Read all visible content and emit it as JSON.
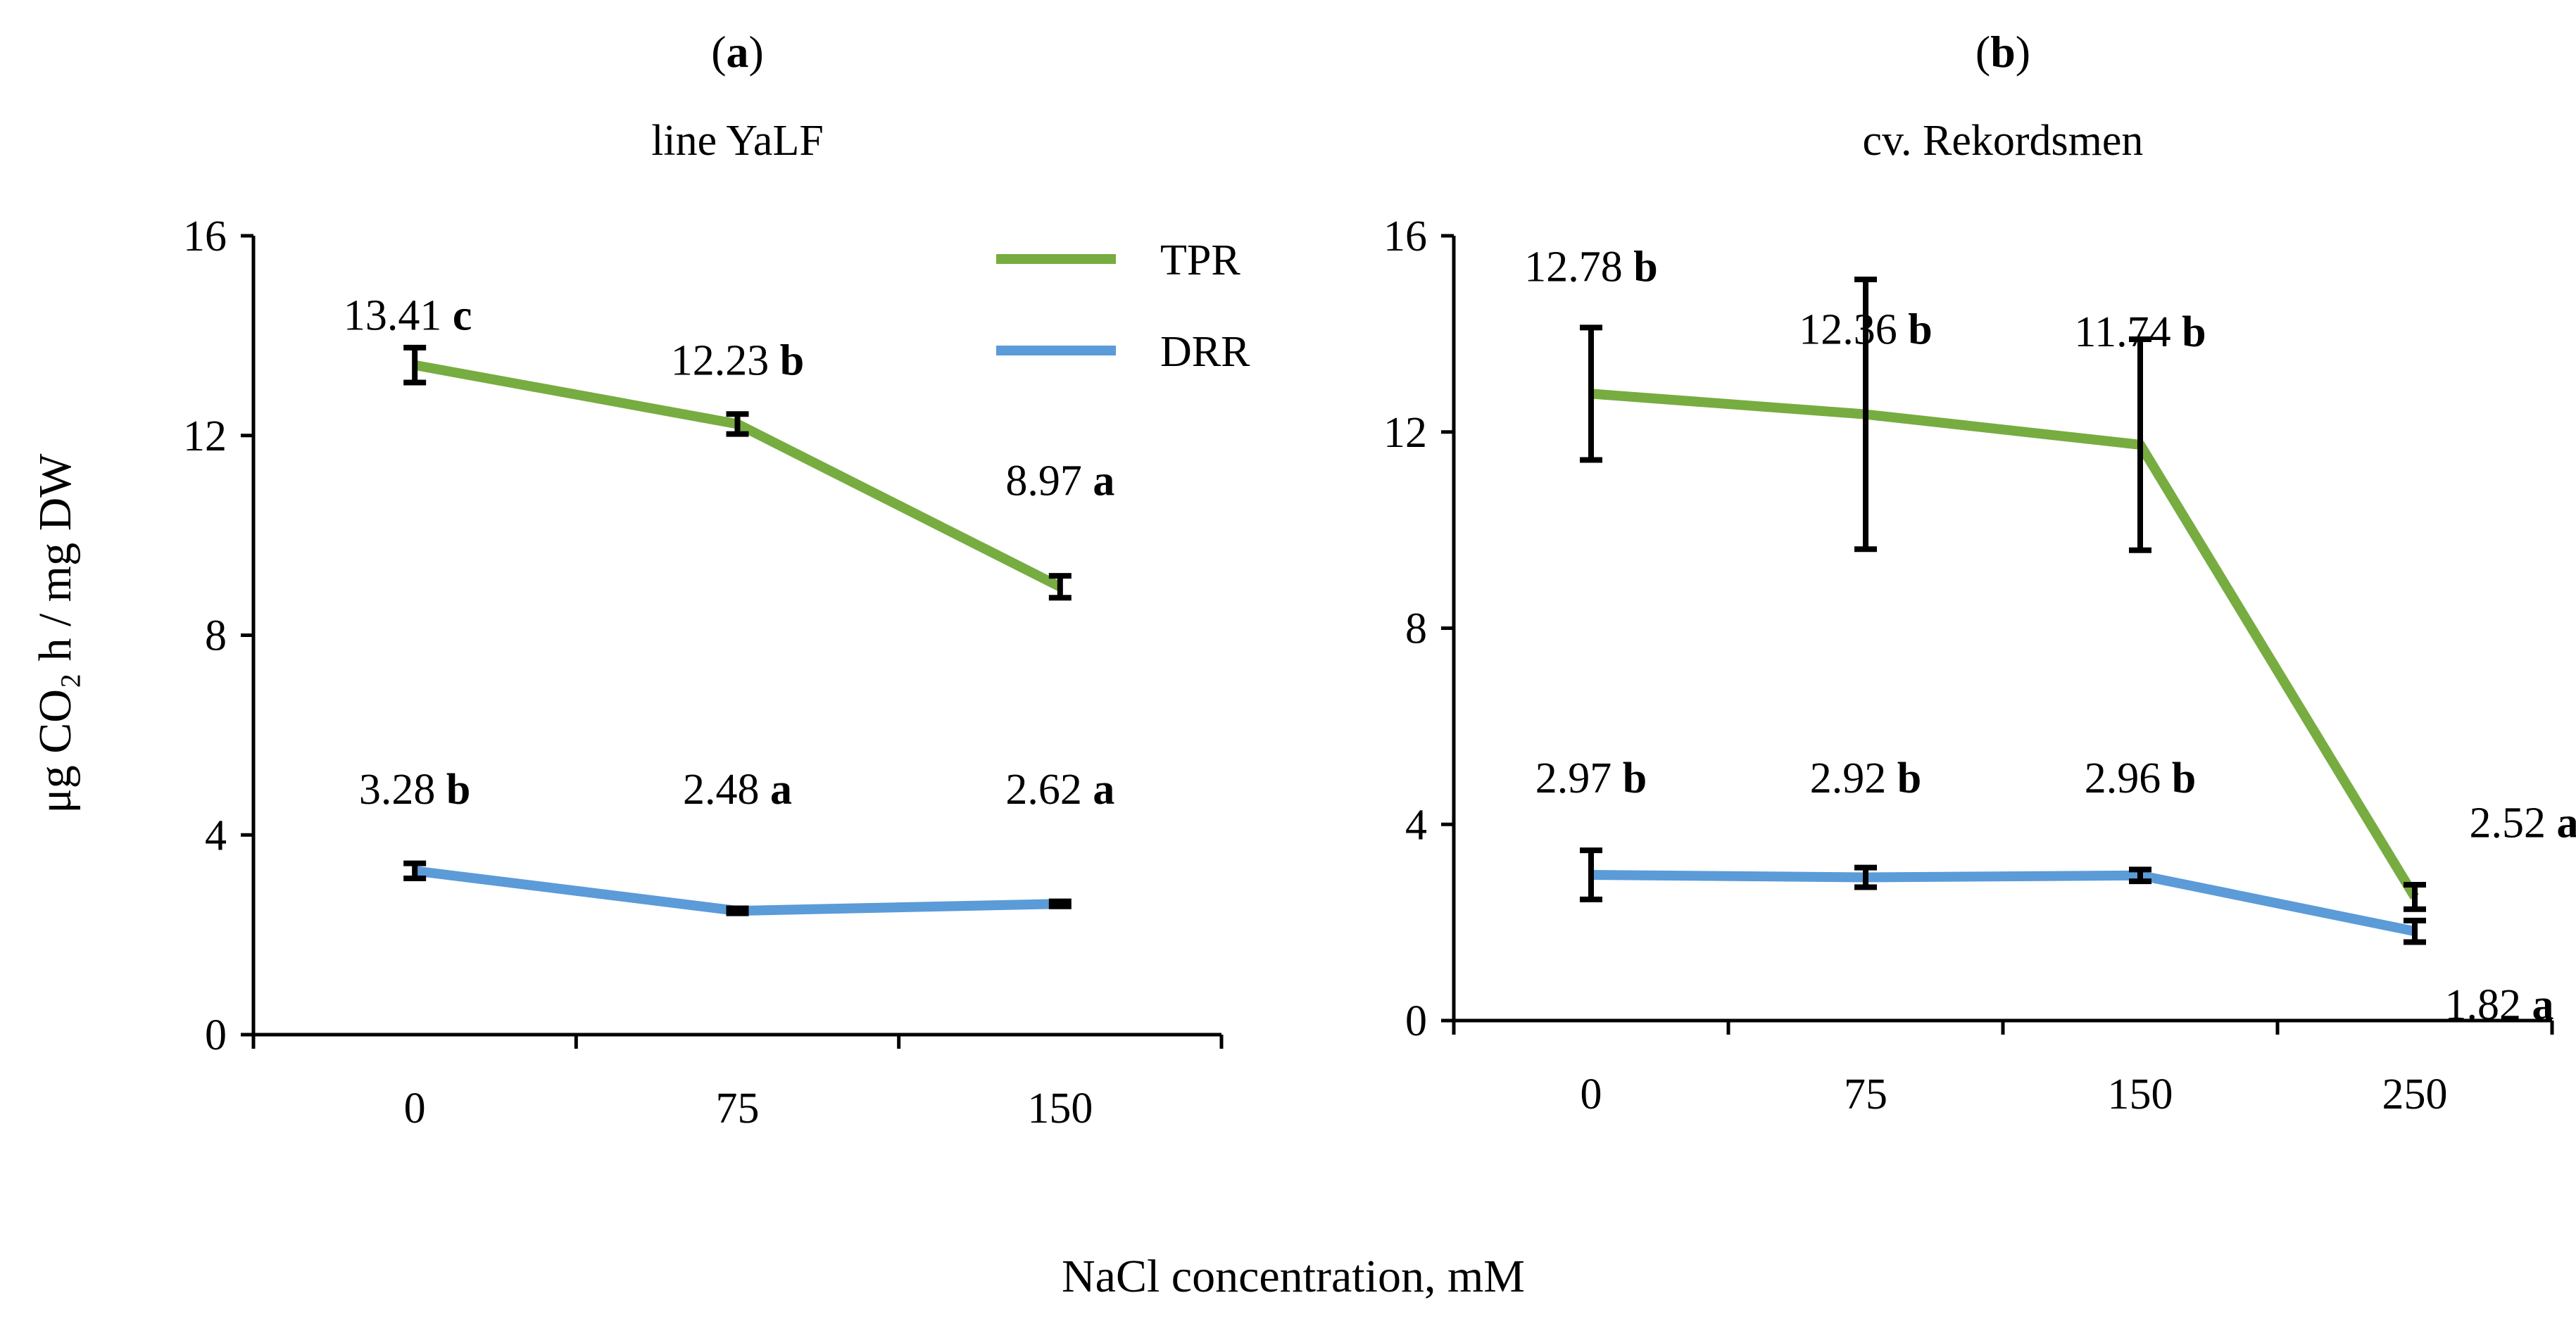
{
  "figure": {
    "ylabel": "μg CO₂ h / mg DW",
    "xlabel": "NaCl concentration, mM",
    "legend": [
      {
        "name": "TPR",
        "color": "#77ac41"
      },
      {
        "name": "DRR",
        "color": "#5b9bd8"
      }
    ]
  },
  "chart_data": [
    {
      "type": "line",
      "panel_letter": "a",
      "subtitle": "line YaLF",
      "categories": [
        "0",
        "75",
        "150"
      ],
      "ylim": [
        0,
        16
      ],
      "yticks": [
        "0",
        "4",
        "8",
        "12",
        "16"
      ],
      "grid": false,
      "legend_position": "top-right",
      "series": [
        {
          "name": "TPR",
          "color": "#77ac41",
          "values": [
            13.41,
            12.23,
            8.97
          ],
          "errors": [
            0.35,
            0.2,
            0.22
          ],
          "labels": [
            {
              "value": "13.41",
              "sig": "c"
            },
            {
              "value": "12.23",
              "sig": "b"
            },
            {
              "value": "8.97",
              "sig": "a"
            }
          ]
        },
        {
          "name": "DRR",
          "color": "#5b9bd8",
          "values": [
            3.28,
            2.48,
            2.62
          ],
          "errors": [
            0.15,
            0.05,
            0.05
          ],
          "labels": [
            {
              "value": "3.28",
              "sig": "b"
            },
            {
              "value": "2.48",
              "sig": "a"
            },
            {
              "value": "2.62",
              "sig": "a"
            }
          ]
        }
      ]
    },
    {
      "type": "line",
      "panel_letter": "b",
      "subtitle": "cv. Rekordsmen",
      "categories": [
        "0",
        "75",
        "150",
        "250"
      ],
      "ylim": [
        0,
        16
      ],
      "yticks": [
        "0",
        "4",
        "8",
        "12",
        "16"
      ],
      "grid": false,
      "series": [
        {
          "name": "TPR",
          "color": "#77ac41",
          "values": [
            12.78,
            12.36,
            11.74,
            2.52
          ],
          "errors": [
            1.35,
            2.75,
            2.15,
            0.25
          ],
          "labels": [
            {
              "value": "12.78",
              "sig": "b"
            },
            {
              "value": "12.36",
              "sig": "b"
            },
            {
              "value": "11.74",
              "sig": "b"
            },
            {
              "value": "2.52",
              "sig": "a"
            }
          ]
        },
        {
          "name": "DRR",
          "color": "#5b9bd8",
          "values": [
            2.97,
            2.92,
            2.96,
            1.82
          ],
          "errors": [
            0.5,
            0.2,
            0.12,
            0.22
          ],
          "labels": [
            {
              "value": "2.97",
              "sig": "b"
            },
            {
              "value": "2.92",
              "sig": "b"
            },
            {
              "value": "2.96",
              "sig": "b"
            },
            {
              "value": "1.82",
              "sig": "a"
            }
          ]
        }
      ]
    }
  ]
}
